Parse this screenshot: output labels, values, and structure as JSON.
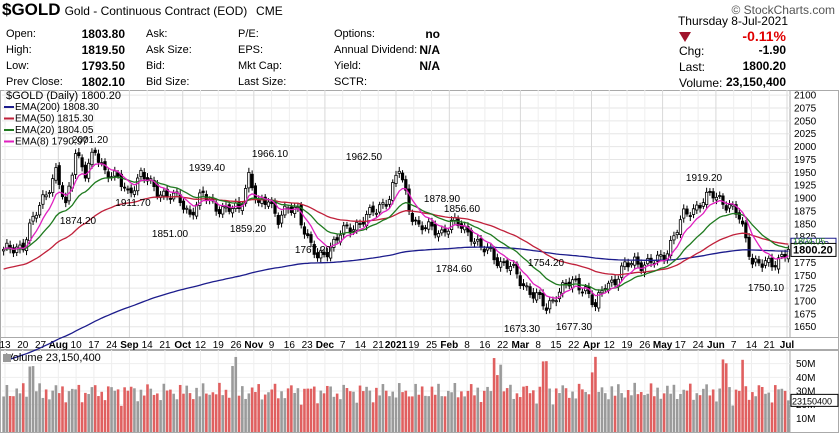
{
  "header": {
    "symbol": "$GOLD",
    "description": "Gold - Continuous Contract (EOD)",
    "exchange": "CME",
    "logo_text": "© StockCharts.com",
    "date_line": "Thursday  8-Jul-2021",
    "change_pct": "-0.11%",
    "chg_label": "Chg:",
    "chg_value": "-1.90",
    "last_label": "Last:",
    "last_value": "1800.20",
    "volume_label": "Volume:",
    "volume_value": "23,150,400",
    "stats": [
      {
        "label": "Open:",
        "value": "1803.80"
      },
      {
        "label": "High:",
        "value": "1819.50"
      },
      {
        "label": "Low:",
        "value": "1793.50"
      },
      {
        "label": "Prev Close:",
        "value": "1802.10"
      }
    ],
    "col2": [
      {
        "label": "Ask:",
        "value": ""
      },
      {
        "label": "Ask Size:",
        "value": ""
      },
      {
        "label": "Bid:",
        "value": ""
      },
      {
        "label": "Bid Size:",
        "value": ""
      }
    ],
    "col3": [
      {
        "label": "P/E:",
        "value": ""
      },
      {
        "label": "EPS:",
        "value": ""
      },
      {
        "label": "Mkt Cap:",
        "value": ""
      },
      {
        "label": "Last Size:",
        "value": ""
      }
    ],
    "col4": [
      {
        "label": "Options:",
        "value": "no"
      },
      {
        "label": "Annual Dividend:",
        "value": "N/A"
      },
      {
        "label": "Yield:",
        "value": "N/A"
      },
      {
        "label": "SCTR:",
        "value": ""
      }
    ]
  },
  "chart_data": {
    "type": "line",
    "price_legend": "$GOLD (Daily) 1800.20",
    "legend": [
      {
        "label": "EMA(200) 1808.30",
        "color": "#1c1c8c"
      },
      {
        "label": "EMA(50) 1815.30",
        "color": "#c0203a"
      },
      {
        "label": "EMA(20) 1804.05",
        "color": "#1f7a1f"
      },
      {
        "label": "EMA(8) 1790.97",
        "color": "#e020c0"
      }
    ],
    "ylim": [
      1630,
      2110
    ],
    "yticks": [
      1650,
      1675,
      1700,
      1725,
      1750,
      1775,
      1800,
      1825,
      1850,
      1875,
      1900,
      1925,
      1950,
      1975,
      2000,
      2025,
      2050,
      2075,
      2100
    ],
    "last_price_label": "1800.20",
    "overlap_labels": [
      "1808.30",
      "1804.05"
    ],
    "x_labels": [
      "13",
      "20",
      "27",
      "Aug",
      "10",
      "17",
      "24",
      "Sep",
      "14",
      "21",
      "Oct",
      "12",
      "19",
      "26",
      "Nov",
      "9",
      "16",
      "23",
      "Dec",
      "7",
      "14",
      "21",
      "2021",
      "19",
      "25",
      "Feb",
      "8",
      "16",
      "22",
      "Mar",
      "8",
      "15",
      "22",
      "Apr",
      "12",
      "19",
      "26",
      "May",
      "17",
      "24",
      "Jun",
      "7",
      "14",
      "21",
      "Jul"
    ],
    "bold_x_labels": [
      "Aug",
      "Sep",
      "Oct",
      "Nov",
      "Dec",
      "2021",
      "Feb",
      "Mar",
      "Apr",
      "May",
      "Jun",
      "Jul"
    ],
    "annotations": [
      "2001.20",
      "1874.20",
      "1911.70",
      "1851.00",
      "1939.40",
      "1859.20",
      "1966.10",
      "1767.20",
      "1962.50",
      "1878.90",
      "1856.60",
      "1784.60",
      "1754.20",
      "1673.30",
      "1677.30",
      "1919.20",
      "1750.10"
    ],
    "anchors": [
      {
        "i": 0,
        "v": 1795
      },
      {
        "i": 6,
        "v": 1810
      },
      {
        "i": 12,
        "v": 1900
      },
      {
        "i": 16,
        "v": 1950
      },
      {
        "i": 19,
        "v": 1880
      },
      {
        "i": 22,
        "v": 1995
      },
      {
        "i": 25,
        "v": 1945
      },
      {
        "i": 28,
        "v": 1990
      },
      {
        "i": 31,
        "v": 1955
      },
      {
        "i": 35,
        "v": 1935
      },
      {
        "i": 38,
        "v": 1910
      },
      {
        "i": 42,
        "v": 1945
      },
      {
        "i": 46,
        "v": 1920
      },
      {
        "i": 50,
        "v": 1905
      },
      {
        "i": 54,
        "v": 1895
      },
      {
        "i": 57,
        "v": 1870
      },
      {
        "i": 61,
        "v": 1905
      },
      {
        "i": 65,
        "v": 1885
      },
      {
        "i": 68,
        "v": 1875
      },
      {
        "i": 72,
        "v": 1880
      },
      {
        "i": 75,
        "v": 1945
      },
      {
        "i": 78,
        "v": 1880
      },
      {
        "i": 81,
        "v": 1900
      },
      {
        "i": 84,
        "v": 1860
      },
      {
        "i": 87,
        "v": 1875
      },
      {
        "i": 90,
        "v": 1880
      },
      {
        "i": 93,
        "v": 1820
      },
      {
        "i": 96,
        "v": 1780
      },
      {
        "i": 99,
        "v": 1800
      },
      {
        "i": 103,
        "v": 1830
      },
      {
        "i": 106,
        "v": 1840
      },
      {
        "i": 110,
        "v": 1860
      },
      {
        "i": 114,
        "v": 1875
      },
      {
        "i": 118,
        "v": 1905
      },
      {
        "i": 121,
        "v": 1955
      },
      {
        "i": 124,
        "v": 1880
      },
      {
        "i": 127,
        "v": 1845
      },
      {
        "i": 130,
        "v": 1840
      },
      {
        "i": 134,
        "v": 1835
      },
      {
        "i": 137,
        "v": 1850
      },
      {
        "i": 140,
        "v": 1845
      },
      {
        "i": 143,
        "v": 1830
      },
      {
        "i": 146,
        "v": 1800
      },
      {
        "i": 149,
        "v": 1795
      },
      {
        "i": 152,
        "v": 1775
      },
      {
        "i": 155,
        "v": 1765
      },
      {
        "i": 158,
        "v": 1740
      },
      {
        "i": 161,
        "v": 1720
      },
      {
        "i": 164,
        "v": 1700
      },
      {
        "i": 166,
        "v": 1685
      },
      {
        "i": 169,
        "v": 1715
      },
      {
        "i": 172,
        "v": 1730
      },
      {
        "i": 175,
        "v": 1735
      },
      {
        "i": 178,
        "v": 1725
      },
      {
        "i": 181,
        "v": 1685
      },
      {
        "i": 184,
        "v": 1735
      },
      {
        "i": 187,
        "v": 1740
      },
      {
        "i": 190,
        "v": 1765
      },
      {
        "i": 193,
        "v": 1780
      },
      {
        "i": 196,
        "v": 1770
      },
      {
        "i": 199,
        "v": 1775
      },
      {
        "i": 202,
        "v": 1790
      },
      {
        "i": 205,
        "v": 1825
      },
      {
        "i": 208,
        "v": 1865
      },
      {
        "i": 211,
        "v": 1880
      },
      {
        "i": 214,
        "v": 1895
      },
      {
        "i": 217,
        "v": 1905
      },
      {
        "i": 219,
        "v": 1900
      },
      {
        "i": 222,
        "v": 1885
      },
      {
        "i": 225,
        "v": 1860
      },
      {
        "i": 227,
        "v": 1820
      },
      {
        "i": 229,
        "v": 1780
      },
      {
        "i": 232,
        "v": 1770
      },
      {
        "i": 235,
        "v": 1770
      },
      {
        "i": 238,
        "v": 1790
      },
      {
        "i": 240,
        "v": 1800
      }
    ],
    "volume_legend": "Volume 23,150,400",
    "volume_ticks": [
      "50M",
      "40M",
      "30M",
      "20M",
      "10M"
    ],
    "volume_last_label": "23150400"
  }
}
